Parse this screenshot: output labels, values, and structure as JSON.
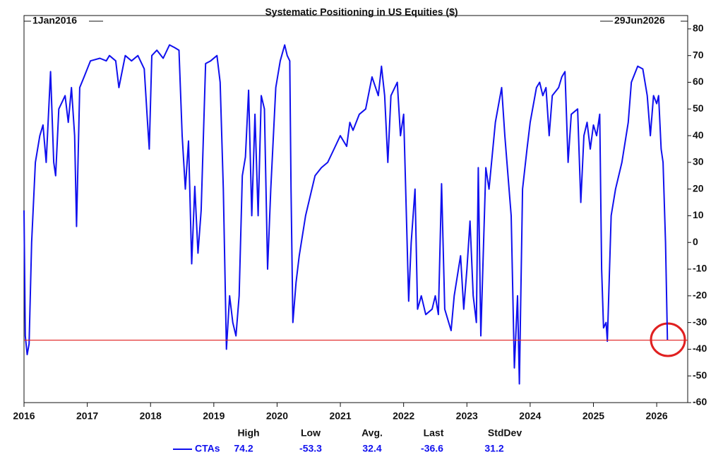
{
  "chart_data": {
    "type": "line",
    "title": "Systematic Positioning in US Equities ($)",
    "start_label": "1Jan2016",
    "end_label": "29Jun2026",
    "x": [
      2016.0,
      2016.02,
      2016.05,
      2016.08,
      2016.12,
      2016.18,
      2016.25,
      2016.3,
      2016.35,
      2016.42,
      2016.47,
      2016.5,
      2016.55,
      2016.65,
      2016.7,
      2016.75,
      2016.8,
      2016.83,
      2016.88,
      2016.95,
      2017.05,
      2017.2,
      2017.3,
      2017.35,
      2017.45,
      2017.5,
      2017.6,
      2017.7,
      2017.8,
      2017.9,
      2017.95,
      2017.98,
      2018.02,
      2018.1,
      2018.2,
      2018.3,
      2018.38,
      2018.45,
      2018.5,
      2018.55,
      2018.6,
      2018.65,
      2018.7,
      2018.75,
      2018.8,
      2018.87,
      2018.95,
      2019.05,
      2019.1,
      2019.15,
      2019.2,
      2019.25,
      2019.3,
      2019.35,
      2019.4,
      2019.45,
      2019.5,
      2019.55,
      2019.6,
      2019.65,
      2019.7,
      2019.75,
      2019.8,
      2019.85,
      2019.9,
      2019.98,
      2020.05,
      2020.12,
      2020.16,
      2020.2,
      2020.22,
      2020.25,
      2020.3,
      2020.35,
      2020.45,
      2020.55,
      2020.6,
      2020.7,
      2020.8,
      2020.9,
      2021.0,
      2021.1,
      2021.15,
      2021.2,
      2021.3,
      2021.4,
      2021.5,
      2021.6,
      2021.65,
      2021.7,
      2021.75,
      2021.8,
      2021.9,
      2021.95,
      2022.0,
      2022.05,
      2022.08,
      2022.12,
      2022.18,
      2022.22,
      2022.28,
      2022.35,
      2022.45,
      2022.5,
      2022.55,
      2022.6,
      2022.65,
      2022.75,
      2022.8,
      2022.9,
      2022.95,
      2023.0,
      2023.05,
      2023.1,
      2023.15,
      2023.18,
      2023.22,
      2023.3,
      2023.35,
      2023.45,
      2023.55,
      2023.6,
      2023.7,
      2023.75,
      2023.8,
      2023.83,
      2023.88,
      2023.95,
      2024.0,
      2024.1,
      2024.15,
      2024.2,
      2024.25,
      2024.3,
      2024.35,
      2024.45,
      2024.5,
      2024.55,
      2024.6,
      2024.65,
      2024.75,
      2024.8,
      2024.85,
      2024.9,
      2024.95,
      2025.0,
      2025.05,
      2025.1,
      2025.13,
      2025.16,
      2025.2,
      2025.22,
      2025.28,
      2025.35,
      2025.45,
      2025.55,
      2025.6,
      2025.7,
      2025.78,
      2025.85,
      2025.9,
      2025.95,
      2026.0,
      2026.03,
      2026.07,
      2026.1,
      2026.14,
      2026.17
    ],
    "series": [
      {
        "name": "CTAs",
        "color": "#1010ee",
        "values": [
          12,
          -35,
          -42,
          -38,
          0,
          30,
          40,
          44,
          30,
          64,
          30,
          25,
          50,
          55,
          45,
          58,
          40,
          6,
          58,
          62,
          68,
          69,
          68,
          70,
          68,
          58,
          70,
          68,
          70,
          65,
          46,
          35,
          70,
          72,
          69,
          74,
          73,
          72,
          40,
          20,
          38,
          -8,
          21,
          -4,
          12,
          67,
          68,
          70,
          60,
          20,
          -40,
          -20,
          -30,
          -35,
          -20,
          25,
          32,
          57,
          10,
          48,
          10,
          55,
          50,
          -10,
          20,
          58,
          68,
          74,
          70,
          68,
          20,
          -30,
          -15,
          -5,
          10,
          20,
          25,
          28,
          30,
          35,
          40,
          36,
          45,
          42,
          48,
          50,
          62,
          55,
          66,
          55,
          30,
          55,
          60,
          40,
          48,
          5,
          -22,
          0,
          20,
          -25,
          -20,
          -27,
          -25,
          -20,
          -27,
          22,
          -25,
          -33,
          -20,
          -5,
          -25,
          -10,
          8,
          -20,
          -30,
          28,
          -35,
          28,
          20,
          45,
          58,
          40,
          10,
          -47,
          -20,
          -53,
          20,
          35,
          45,
          58,
          60,
          55,
          58,
          40,
          55,
          58,
          62,
          64,
          30,
          48,
          50,
          15,
          40,
          45,
          35,
          44,
          40,
          48,
          -10,
          -32,
          -30,
          -37,
          10,
          20,
          30,
          45,
          60,
          66,
          65,
          55,
          40,
          55,
          52,
          55,
          35,
          30,
          0,
          -36.6
        ]
      }
    ],
    "xlim": [
      2016,
      2026.49
    ],
    "xticks": [
      2016,
      2017,
      2018,
      2019,
      2020,
      2021,
      2022,
      2023,
      2024,
      2025,
      2026
    ],
    "ylim": [
      -60,
      85
    ],
    "yticks": [
      -60,
      -50,
      -40,
      -30,
      -20,
      -10,
      0,
      10,
      20,
      30,
      40,
      50,
      60,
      70,
      80
    ],
    "reference_color": "#e02020",
    "stats": {
      "headers": [
        "High",
        "Low",
        "Avg.",
        "Last",
        "StdDev"
      ],
      "values": [
        74.2,
        -53.3,
        32.4,
        -36.6,
        31.2
      ]
    }
  }
}
